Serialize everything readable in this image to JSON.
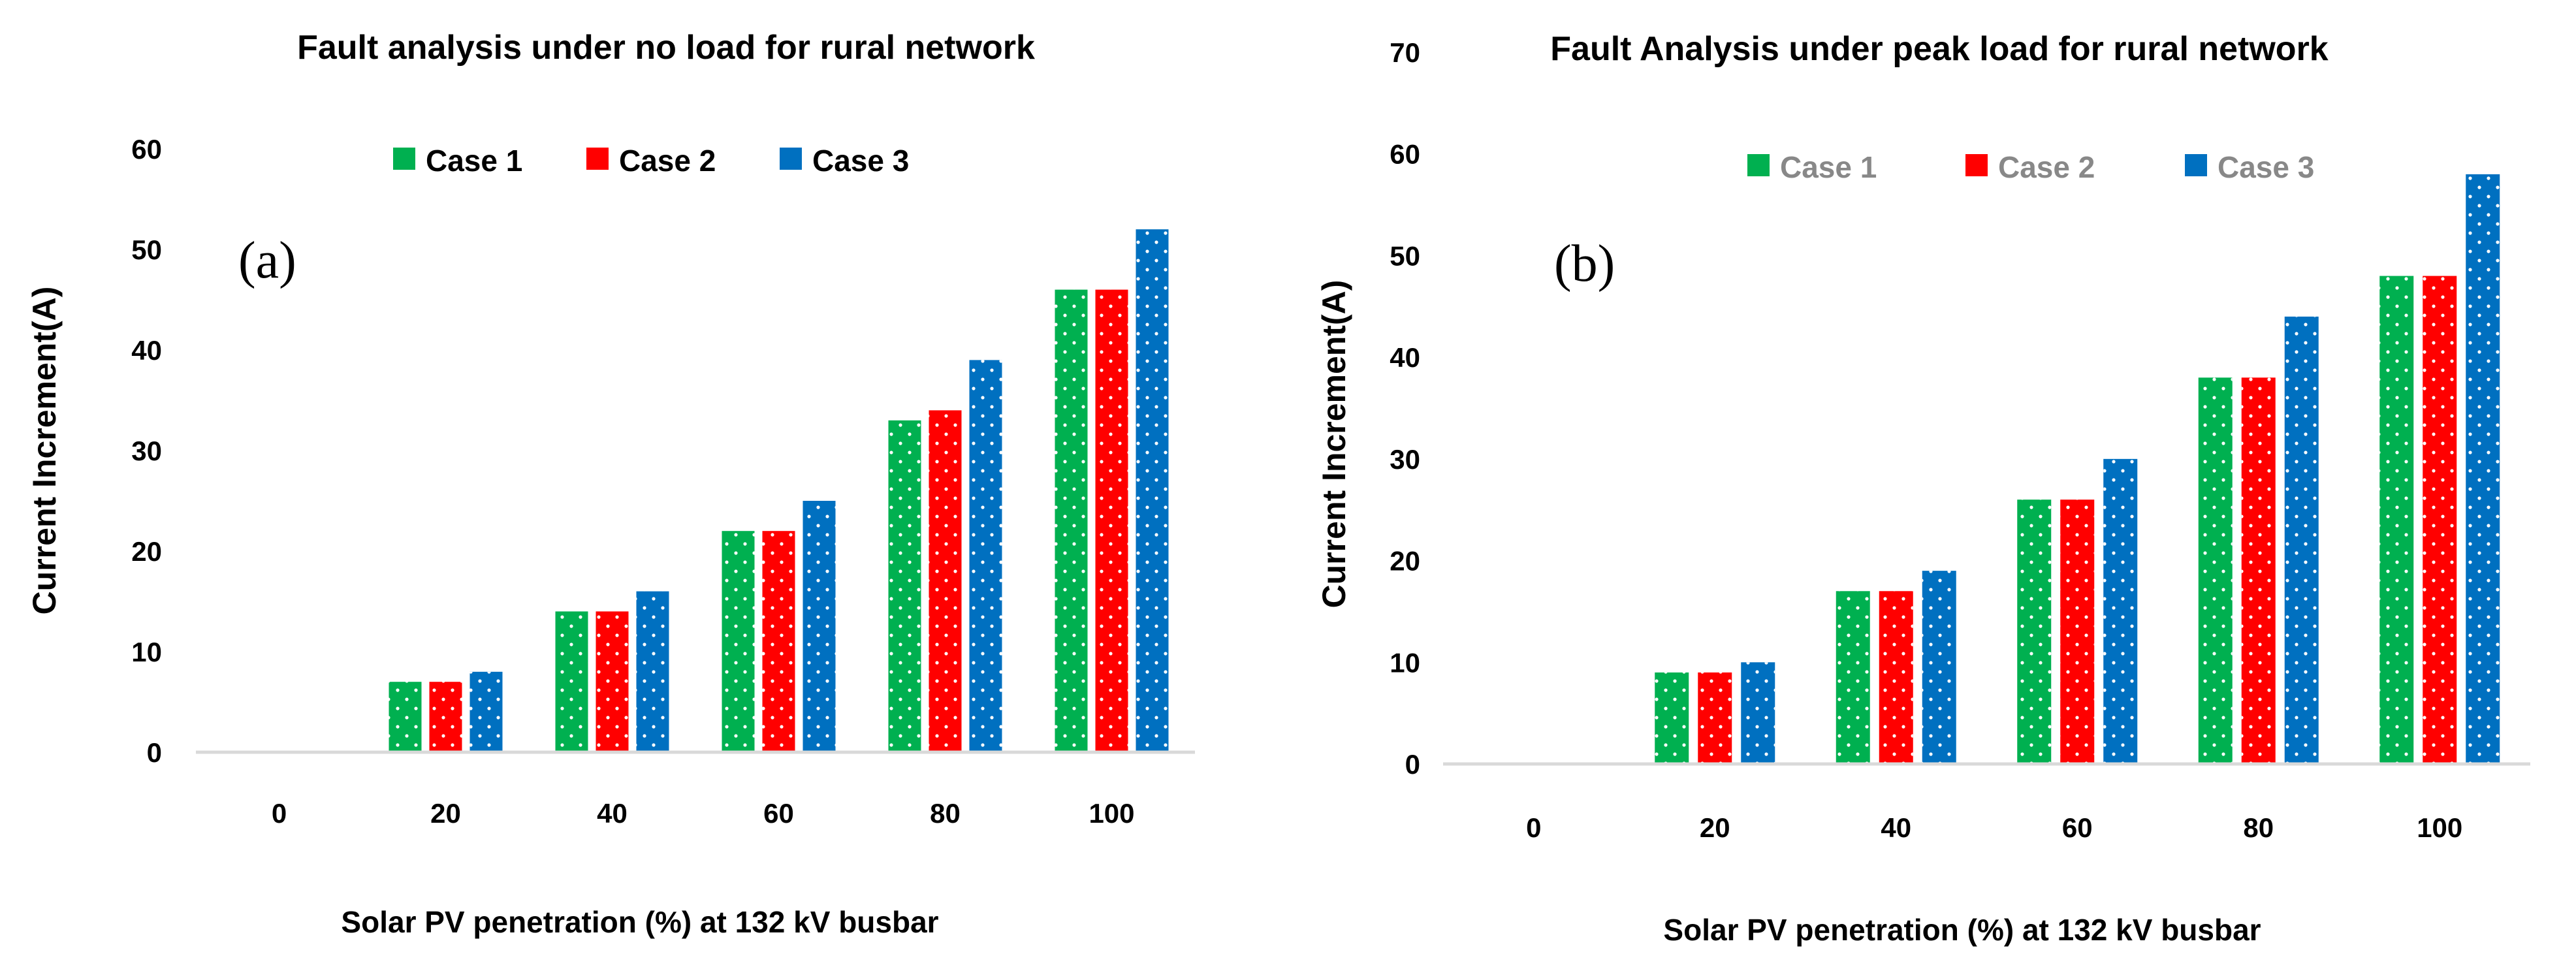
{
  "colors": {
    "case1": "#00b050",
    "case2": "#ff0000",
    "case3": "#0070c0",
    "axis": "#d9d9d9"
  },
  "chart_data": [
    {
      "type": "bar",
      "panel": "(a)",
      "title": "Fault analysis under no load for rural network",
      "xlabel": "Solar PV penetration (%) at 132 kV busbar",
      "ylabel": "Current Increment(A)",
      "categories": [
        "0",
        "20",
        "40",
        "60",
        "80",
        "100"
      ],
      "ylim": [
        0,
        60
      ],
      "yticks": [
        0,
        10,
        20,
        30,
        40,
        50,
        60
      ],
      "legend_position": "top",
      "grid": false,
      "series": [
        {
          "name": "Case 1",
          "values": [
            0,
            7,
            14,
            22,
            33,
            46
          ]
        },
        {
          "name": "Case 2",
          "values": [
            0,
            7,
            14,
            22,
            34,
            46
          ]
        },
        {
          "name": "Case 3",
          "values": [
            0,
            8,
            16,
            25,
            39,
            52
          ]
        }
      ]
    },
    {
      "type": "bar",
      "panel": "(b)",
      "title": "Fault Analysis under peak load for rural network",
      "xlabel": "Solar PV penetration (%) at 132 kV busbar",
      "ylabel": "Current Increment(A)",
      "categories": [
        "0",
        "20",
        "40",
        "60",
        "80",
        "100"
      ],
      "ylim": [
        0,
        70
      ],
      "yticks": [
        0,
        10,
        20,
        30,
        40,
        50,
        60,
        70
      ],
      "legend_position": "top",
      "grid": false,
      "series": [
        {
          "name": "Case 1",
          "values": [
            0,
            9,
            17,
            26,
            38,
            48
          ]
        },
        {
          "name": "Case 2",
          "values": [
            0,
            9,
            17,
            26,
            38,
            48
          ]
        },
        {
          "name": "Case 3",
          "values": [
            0,
            10,
            19,
            30,
            44,
            58
          ]
        }
      ]
    }
  ]
}
